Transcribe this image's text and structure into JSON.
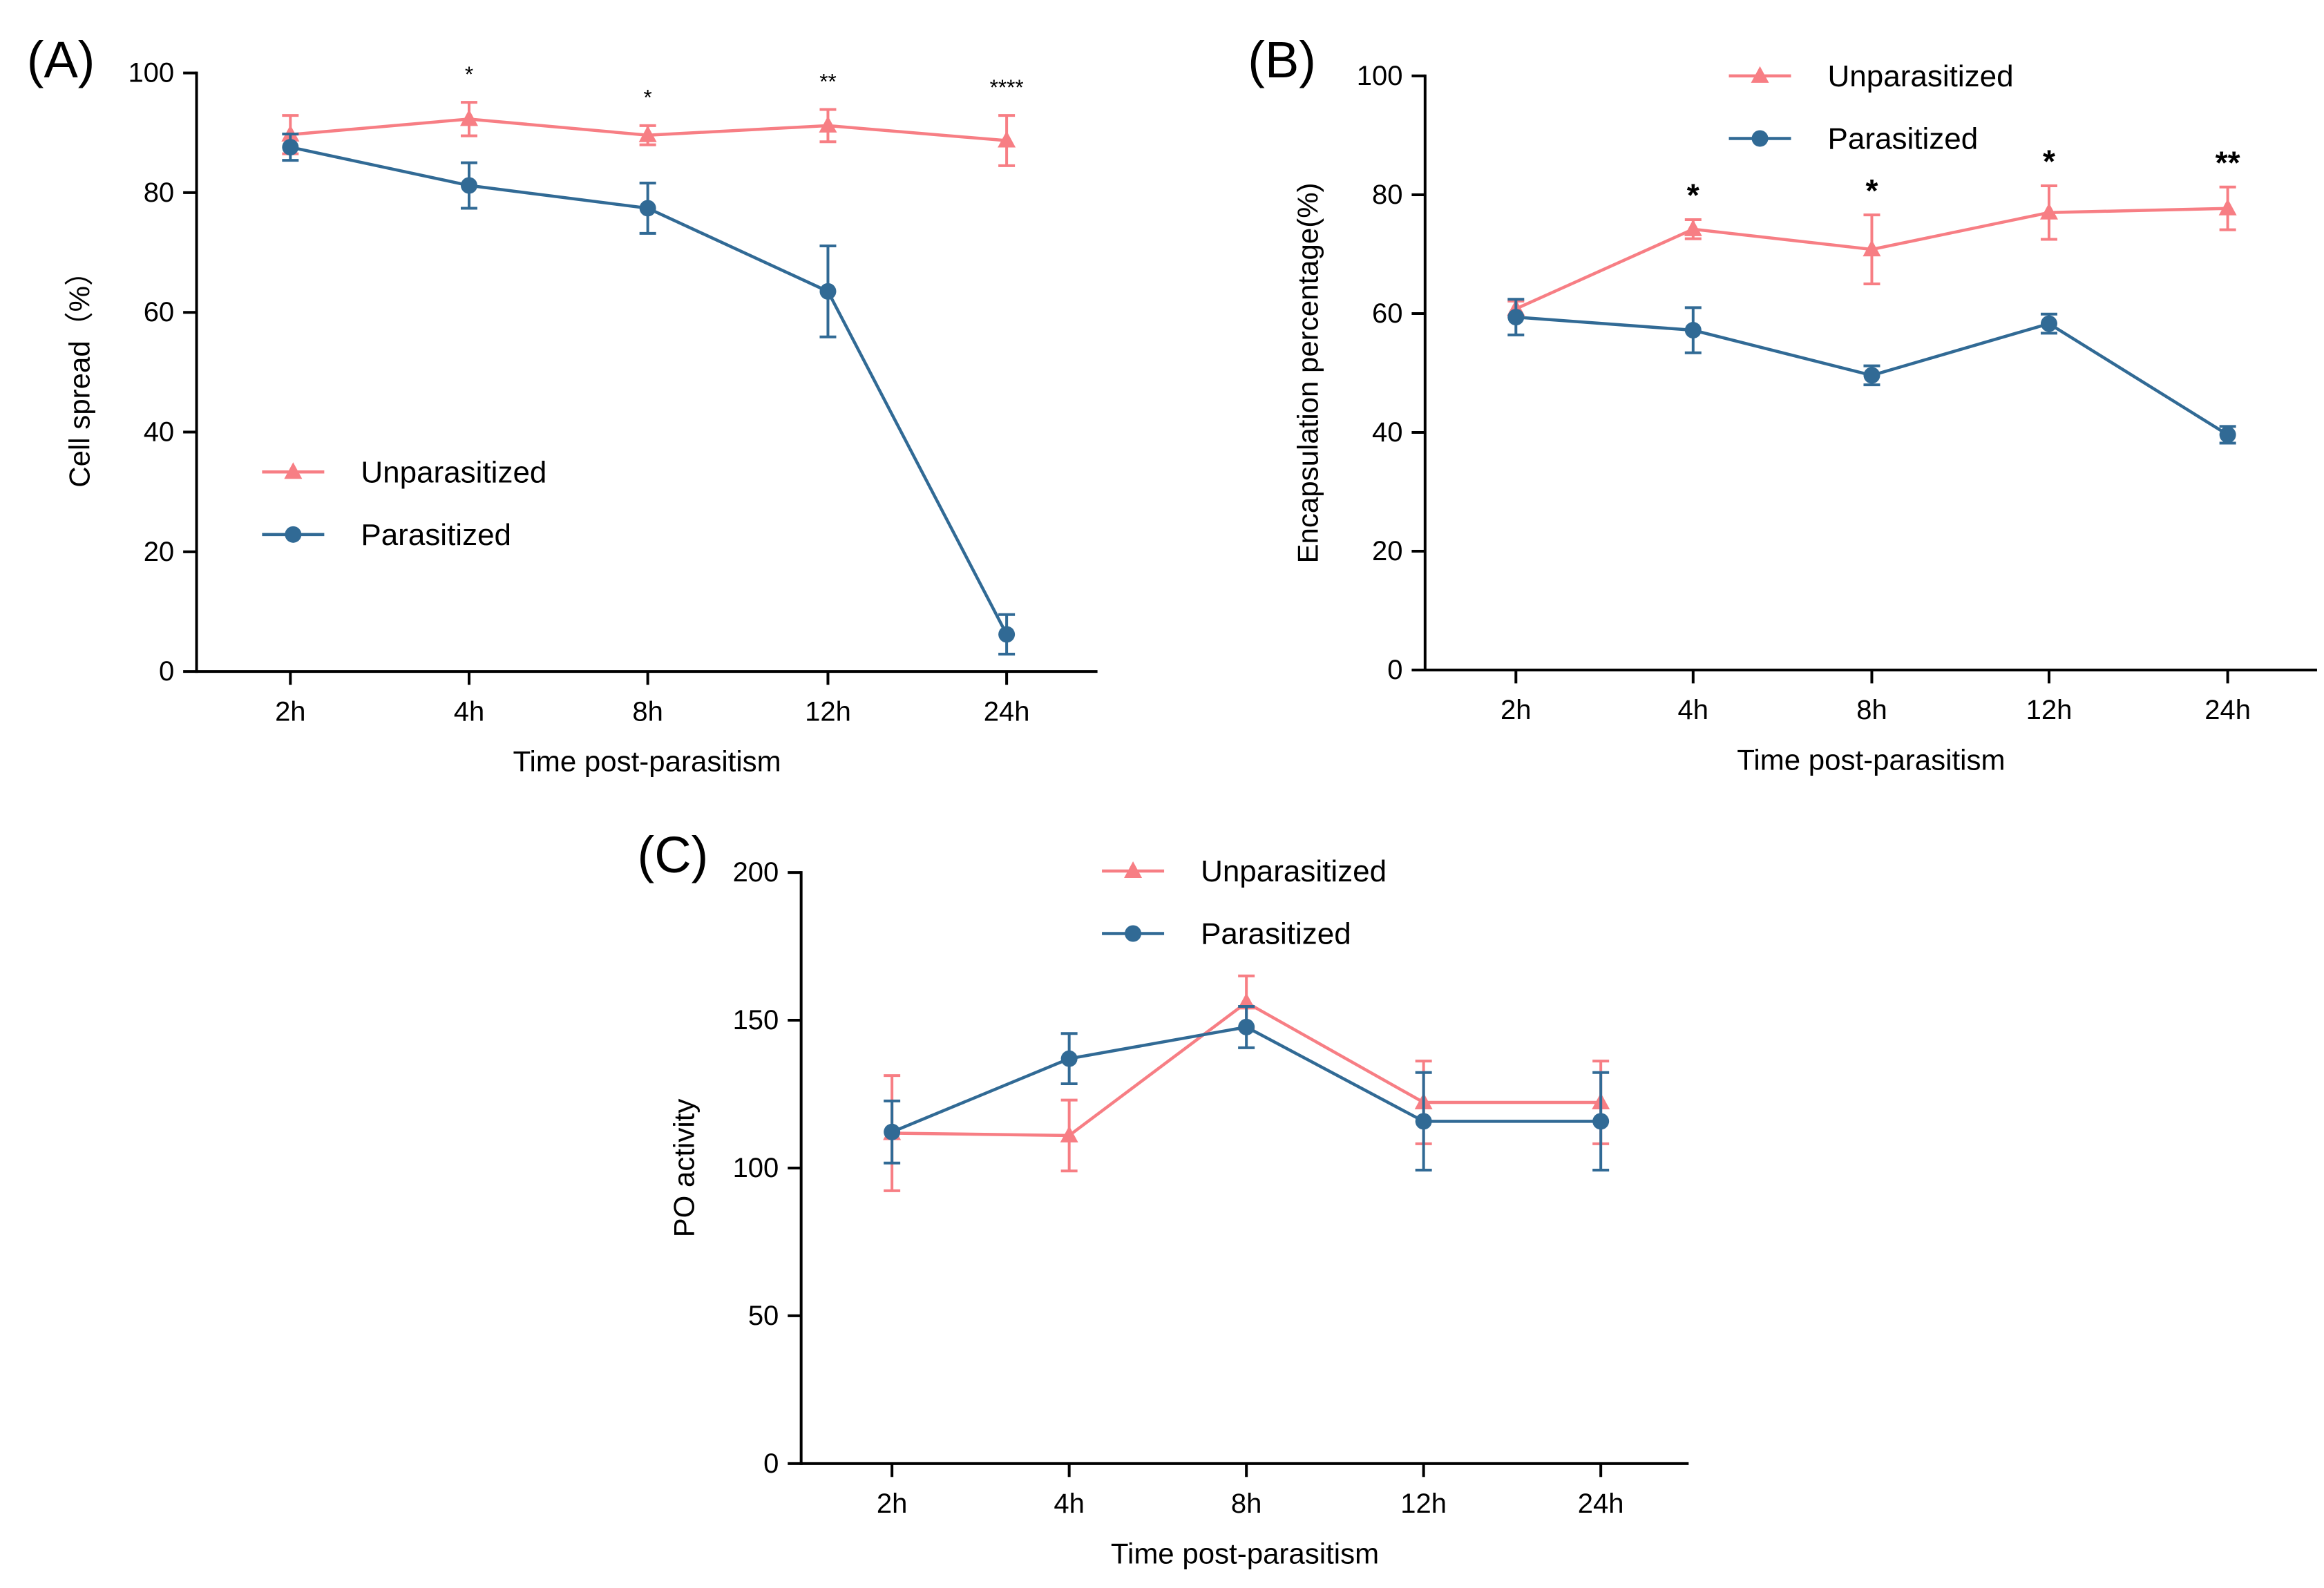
{
  "colors": {
    "unparasitized": "#f77e84",
    "parasitized": "#316a95",
    "axis": "#000000"
  },
  "chart_data": [
    {
      "type": "line",
      "panel_label": "(A)",
      "xlabel": "Time post-parasitism",
      "ylabel": "Cell spread（%）",
      "categories": [
        "2h",
        "4h",
        "8h",
        "12h",
        "24h"
      ],
      "ylim": [
        0,
        100
      ],
      "yticks": [
        0,
        20,
        40,
        60,
        80,
        100
      ],
      "legend_position": "center-left",
      "series": [
        {
          "name": "Unparasitized",
          "marker": "triangle",
          "values": [
            89.7,
            92.3,
            89.6,
            91.2,
            88.7
          ],
          "errors": [
            3.2,
            2.8,
            1.6,
            2.7,
            4.2
          ]
        },
        {
          "name": "Parasitized",
          "marker": "circle",
          "values": [
            87.6,
            81.2,
            77.4,
            63.5,
            6.2
          ],
          "errors": [
            2.2,
            3.8,
            4.2,
            7.6,
            3.3
          ]
        }
      ],
      "significance": [
        "",
        "*",
        "*",
        "**",
        "****"
      ]
    },
    {
      "type": "line",
      "panel_label": "(B)",
      "xlabel": "Time post-parasitism",
      "ylabel": "Encapsulation percentage(%)",
      "categories": [
        "2h",
        "4h",
        "8h",
        "12h",
        "24h"
      ],
      "ylim": [
        0,
        100
      ],
      "yticks": [
        0,
        20,
        40,
        60,
        80,
        100
      ],
      "legend_position": "top-center",
      "series": [
        {
          "name": "Unparasitized",
          "marker": "triangle",
          "values": [
            60.8,
            74.2,
            70.8,
            77.0,
            77.7
          ],
          "errors": [
            1.3,
            1.6,
            5.8,
            4.5,
            3.6
          ]
        },
        {
          "name": "Parasitized",
          "marker": "circle",
          "values": [
            59.4,
            57.2,
            49.6,
            58.3,
            39.6
          ],
          "errors": [
            3.0,
            3.8,
            1.6,
            1.6,
            1.4
          ]
        }
      ],
      "significance": [
        "",
        "*",
        "*",
        "*",
        "**"
      ]
    },
    {
      "type": "line",
      "panel_label": "(C)",
      "xlabel": "Time post-parasitism",
      "ylabel": "PO activity",
      "categories": [
        "2h",
        "4h",
        "8h",
        "12h",
        "24h"
      ],
      "ylim": [
        0,
        200
      ],
      "yticks": [
        0,
        50,
        100,
        150,
        200
      ],
      "legend_position": "top-center",
      "series": [
        {
          "name": "Unparasitized",
          "marker": "triangle",
          "values": [
            111.8,
            111.0,
            156.0,
            122.2,
            122.2
          ],
          "errors": [
            19.5,
            12.0,
            9.0,
            14.0,
            14.0
          ]
        },
        {
          "name": "Parasitized",
          "marker": "circle",
          "values": [
            112.2,
            137.0,
            147.7,
            115.8,
            115.8
          ],
          "errors": [
            10.5,
            8.5,
            7.0,
            16.5,
            16.5
          ]
        }
      ],
      "significance": [
        "",
        "",
        "",
        "",
        ""
      ]
    }
  ]
}
